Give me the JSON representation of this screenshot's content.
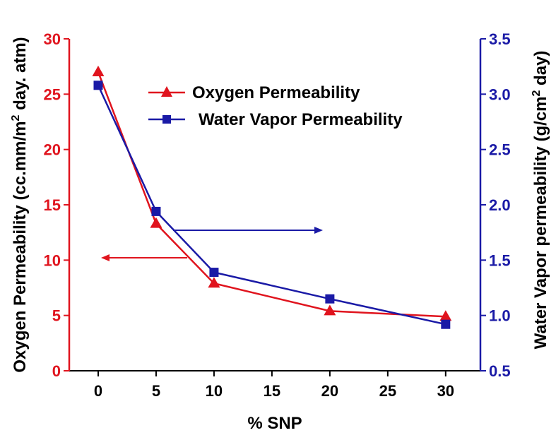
{
  "chart_data": {
    "type": "line",
    "xlabel": "% SNP",
    "ylabel_left_prefix": "Oxygen Permeability (cc.mm/m",
    "ylabel_left_sup": "2",
    "ylabel_left_suffix": " day. atm)",
    "ylabel_right_prefix": "Water Vapor permeability (g/cm",
    "ylabel_right_sup": "2",
    "ylabel_right_suffix": " day)",
    "x_ticks": [
      0,
      5,
      10,
      15,
      20,
      25,
      30
    ],
    "x_tick_labels": [
      "0",
      "5",
      "10",
      "15",
      "20",
      "25",
      "30"
    ],
    "xlim": [
      -2.5,
      33
    ],
    "y_left": {
      "lim": [
        0,
        30
      ],
      "ticks": [
        0,
        5,
        10,
        15,
        20,
        25,
        30
      ],
      "labels": [
        "0",
        "5",
        "10",
        "15",
        "20",
        "25",
        "30"
      ]
    },
    "y_right": {
      "lim": [
        0.5,
        3.5
      ],
      "ticks": [
        0.5,
        1.0,
        1.5,
        2.0,
        2.5,
        3.0,
        3.5
      ],
      "labels": [
        "0.5",
        "1.0",
        "1.5",
        "2.0",
        "2.5",
        "3.0",
        "3.5"
      ]
    },
    "legend_position": "top-center",
    "series": [
      {
        "name": "Oxygen Permeability",
        "axis": "left",
        "marker": "triangle",
        "color": "#e0141e",
        "x": [
          0,
          5,
          10,
          20,
          30
        ],
        "values": [
          27.0,
          13.3,
          7.9,
          5.4,
          4.9
        ]
      },
      {
        "name": "Water Vapor Permeability",
        "axis": "right",
        "marker": "square",
        "color": "#1a1aa6",
        "x": [
          0,
          5,
          10,
          20,
          30
        ],
        "values": [
          3.08,
          1.94,
          1.39,
          1.15,
          0.92
        ]
      }
    ],
    "annotations": [
      {
        "type": "arrow",
        "direction": "left",
        "points_to": "Oxygen Permeability",
        "color": "#e0141e"
      },
      {
        "type": "arrow",
        "direction": "right",
        "points_to": "Water Vapor Permeability",
        "color": "#1a1aa6"
      }
    ]
  }
}
